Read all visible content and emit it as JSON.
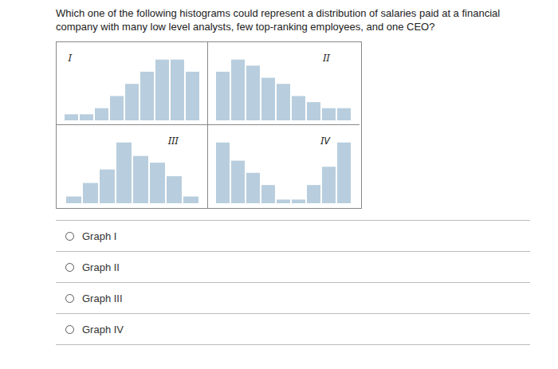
{
  "title": "Which one of the following histograms could represent a distribution of salaries paid at a financial",
  "subtitle": "company with many low level analysts, few top-ranking employees, and one CEO?",
  "annotations": [
    "Graph I",
    "Graph II",
    "Graph III",
    "Graph IV"
  ],
  "chart_data": [
    {
      "type": "bar",
      "title": "I",
      "categories": [
        null,
        null,
        null,
        null,
        null,
        null,
        null,
        null,
        null
      ],
      "values": [
        0.5,
        0.5,
        1.0,
        2.0,
        3.0,
        4.0,
        5.0,
        5.0,
        4.0
      ],
      "color": "#b8cede",
      "ylim": [
        0,
        5.9
      ],
      "tick_labels": false,
      "grid": false
    },
    {
      "type": "bar",
      "title": "II",
      "categories": [
        null,
        null,
        null,
        null,
        null,
        null,
        null,
        null,
        null
      ],
      "values": [
        4.0,
        5.0,
        4.5,
        3.5,
        3.0,
        2.0,
        1.5,
        1.0,
        1.0
      ],
      "color": "#b8cede",
      "ylim": [
        0,
        5.9
      ],
      "tick_labels": false,
      "grid": false
    },
    {
      "type": "bar",
      "title": "III",
      "categories": [
        null,
        null,
        null,
        null,
        null,
        null,
        null,
        null
      ],
      "values": [
        0.5,
        1.5,
        2.5,
        4.5,
        3.5,
        3.0,
        2.0,
        0.5
      ],
      "color": "#b8cede",
      "ylim": [
        0,
        5.31
      ],
      "tick_labels": false,
      "grid": false
    },
    {
      "type": "bar",
      "title": "IV",
      "categories": [
        null,
        null,
        null,
        null,
        null,
        null,
        null,
        null,
        null
      ],
      "values": [
        5.0,
        3.5,
        2.5,
        1.5,
        0.3,
        0.3,
        1.5,
        3.0,
        5.0
      ],
      "color": "#b8cede",
      "ylim": [
        0,
        5.9
      ],
      "tick_labels": false,
      "grid": false
    }
  ]
}
